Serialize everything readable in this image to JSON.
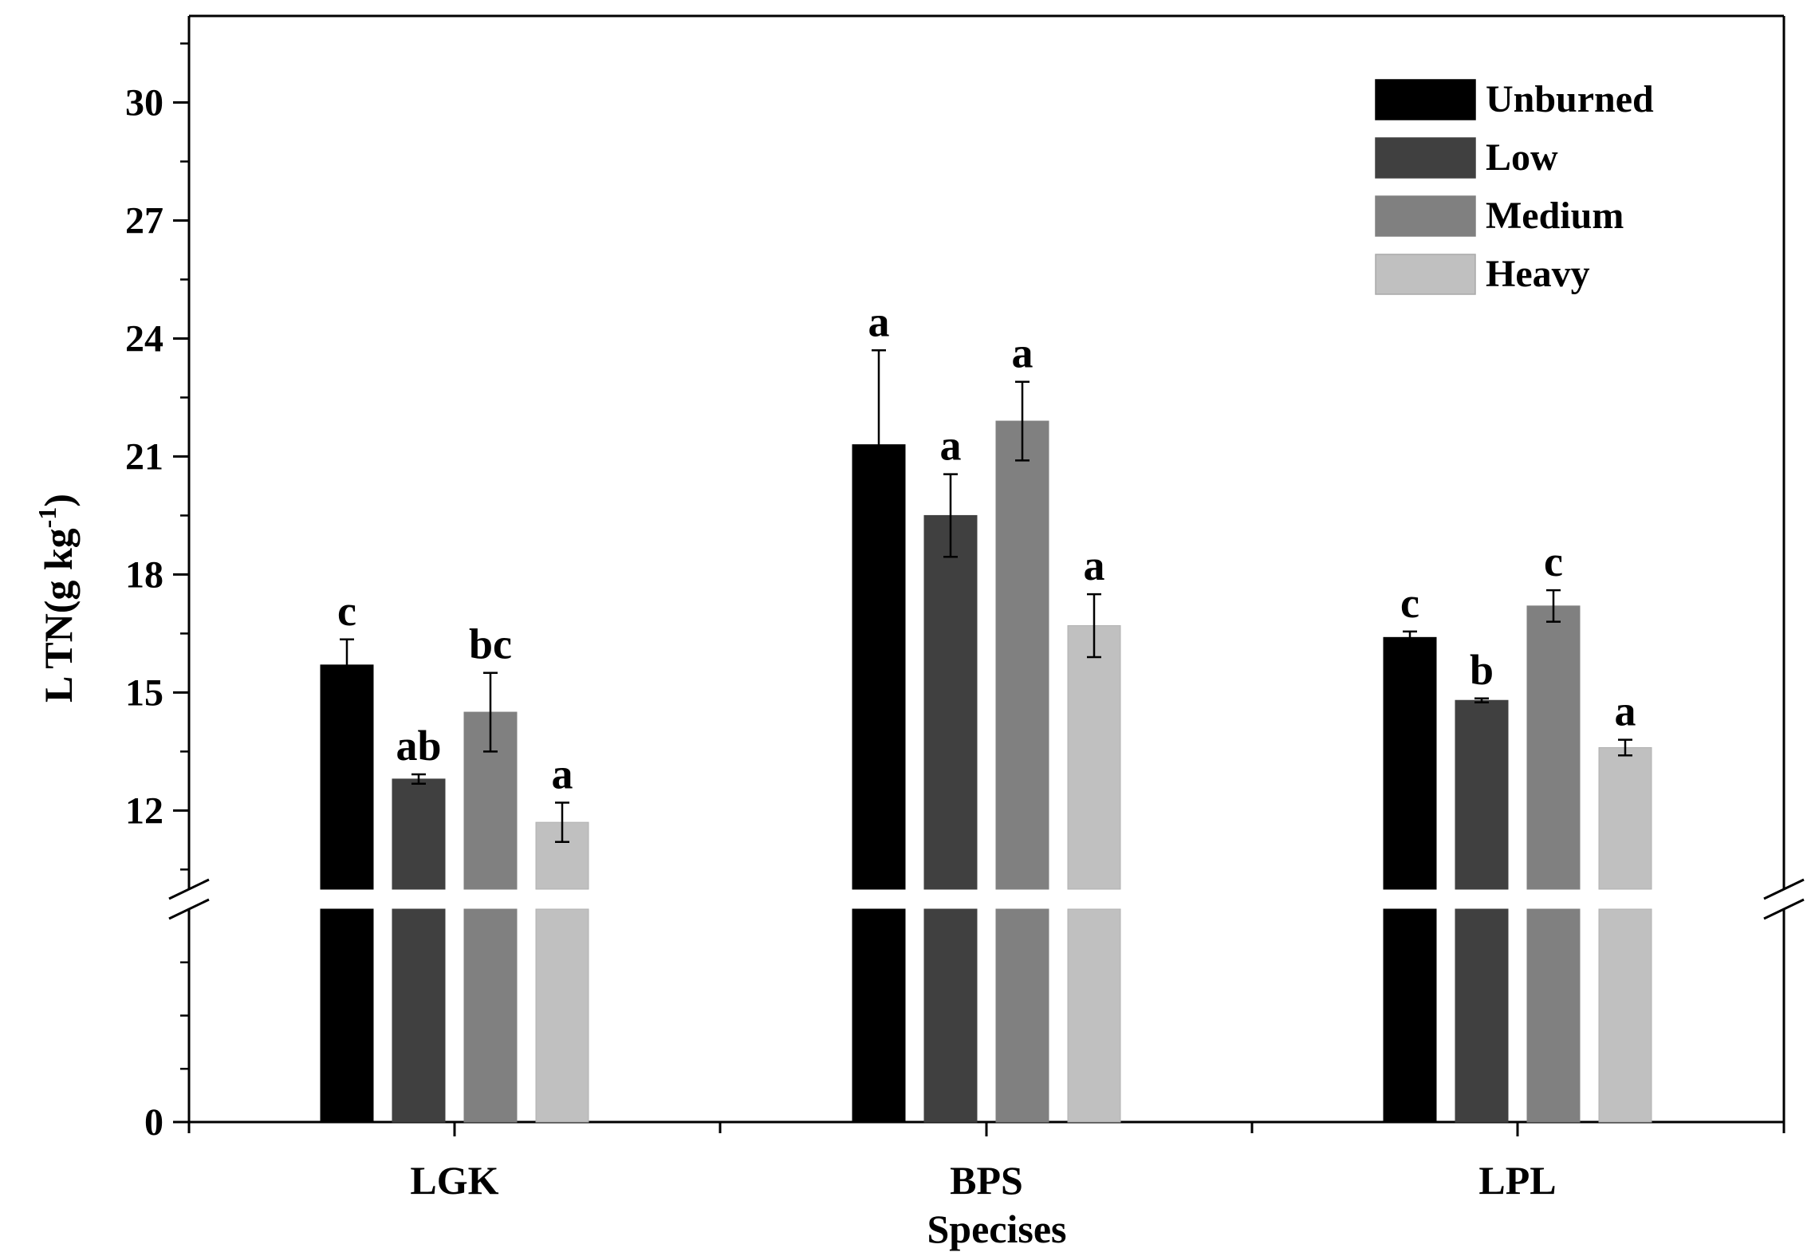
{
  "chart_data": {
    "type": "bar",
    "title": "",
    "xlabel": "Specises",
    "ylabel": "L TN(g kg",
    "ylabel_sup": "-1",
    "ylabel_close": ")",
    "categories": [
      "LGK",
      "BPS",
      "LPL"
    ],
    "series": [
      {
        "name": "Unburned",
        "color": "#000000",
        "values": [
          15.7,
          21.3,
          16.4
        ],
        "errors": [
          0.65,
          2.4,
          0.15
        ],
        "letters": [
          "c",
          "a",
          "c"
        ]
      },
      {
        "name": "Low",
        "color": "#404040",
        "values": [
          12.8,
          19.5,
          14.8
        ],
        "errors": [
          0.12,
          1.05,
          0.05
        ],
        "letters": [
          "ab",
          "a",
          "b"
        ]
      },
      {
        "name": "Medium",
        "color": "#808080",
        "values": [
          14.5,
          21.9,
          17.2
        ],
        "errors": [
          1.0,
          1.0,
          0.4
        ],
        "letters": [
          "bc",
          "a",
          "c"
        ]
      },
      {
        "name": "Heavy",
        "color": "#c0c0c0",
        "values": [
          11.7,
          16.7,
          13.6
        ],
        "errors": [
          0.5,
          0.8,
          0.2
        ],
        "letters": [
          "a",
          "a",
          "a"
        ]
      }
    ],
    "yticks": [
      0,
      12,
      15,
      18,
      21,
      24,
      27,
      30
    ],
    "y_break": [
      0,
      10
    ],
    "ylim": [
      0,
      32.2
    ],
    "grid": false,
    "legend_position": "top-right"
  }
}
